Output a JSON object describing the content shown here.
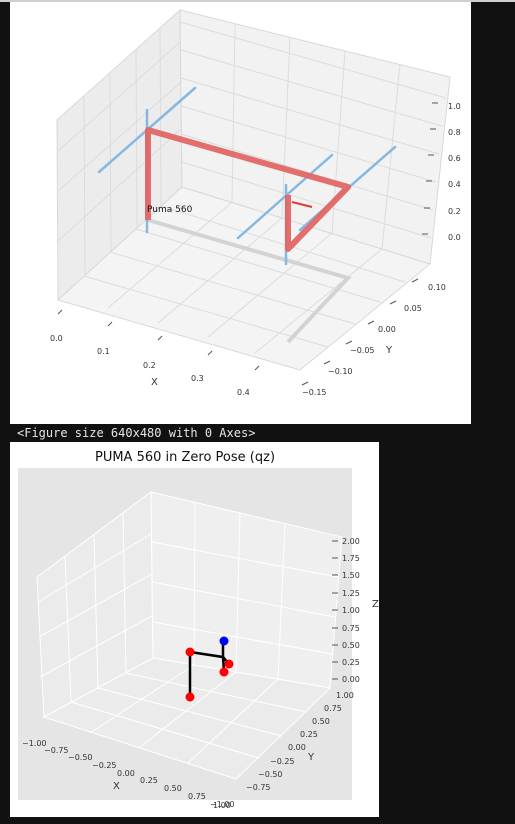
{
  "output_caption": "<Figure size 640x480 with 0 Axes>",
  "plot1": {
    "robot_label": "Puma 560",
    "x_ticks": [
      "0.0",
      "0.1",
      "0.2",
      "0.3",
      "0.4"
    ],
    "y_ticks": [
      "−0.15",
      "−0.10",
      "−0.05",
      "0.00",
      "0.05",
      "0.10"
    ],
    "z_ticks": [
      "0.0",
      "0.2",
      "0.4",
      "0.6",
      "0.8",
      "1.0"
    ],
    "xlabel": "X",
    "ylabel": "Y",
    "colors": {
      "link": "#e06666",
      "joint_axis": "#86b7e0",
      "shadow": "#d3d3d3",
      "pane": "#ececec"
    }
  },
  "plot2": {
    "title": "PUMA 560 in Zero Pose (qz)",
    "x_ticks": [
      "−1.00",
      "−0.75",
      "−0.50",
      "−0.25",
      "0.00",
      "0.25",
      "0.50",
      "0.75",
      "1.00"
    ],
    "y_ticks": [
      "−1.00",
      "−0.75",
      "−0.50",
      "−0.25",
      "0.00",
      "0.25",
      "0.50",
      "0.75",
      "1.00"
    ],
    "z_ticks": [
      "0.00",
      "0.25",
      "0.50",
      "0.75",
      "1.00",
      "1.25",
      "1.50",
      "1.75",
      "2.00"
    ],
    "xlabel": "X",
    "ylabel": "Y",
    "zlabel": "Z",
    "colors": {
      "joint": "#ff0000",
      "end_effector": "#0000ff",
      "link": "#000000",
      "pane": "#e5e5e5"
    }
  }
}
